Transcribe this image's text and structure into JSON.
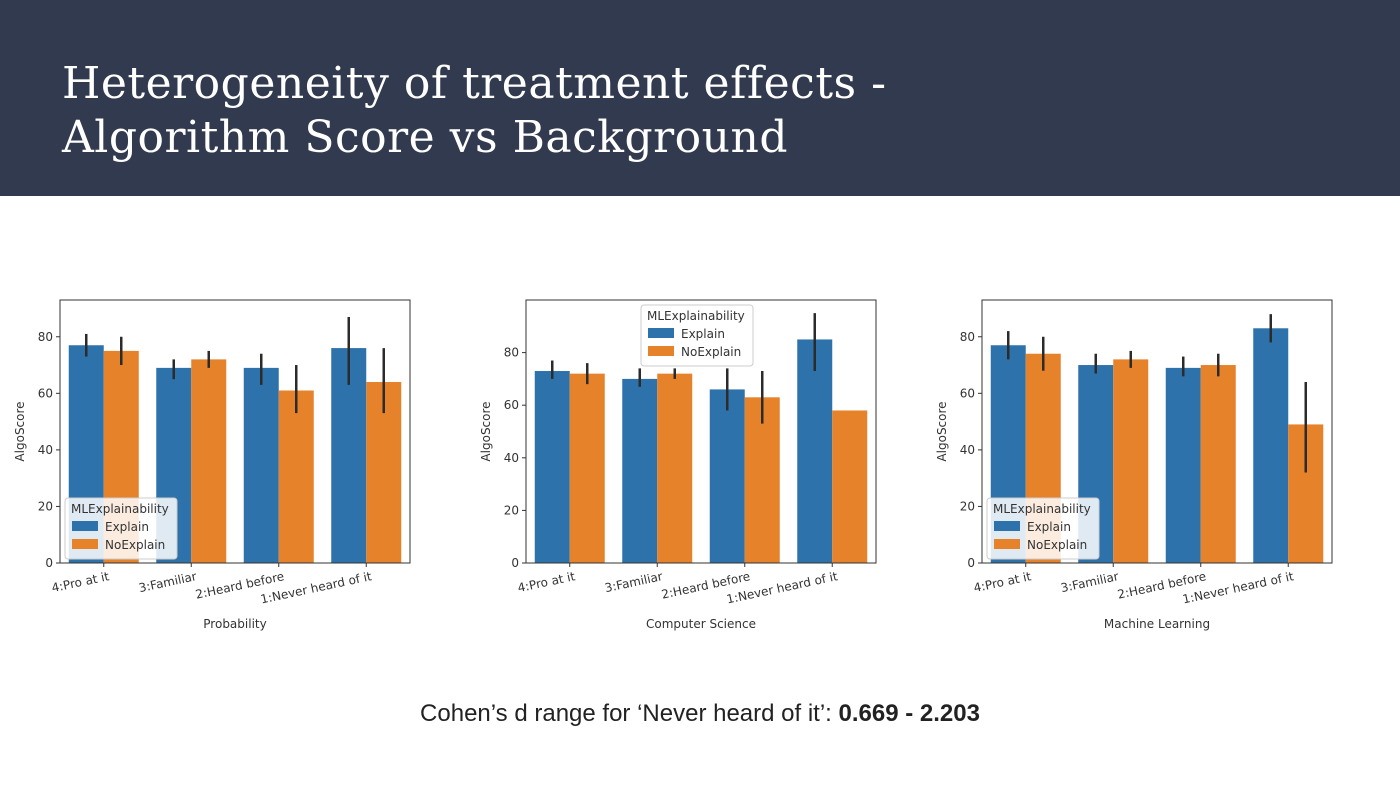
{
  "header": {
    "title_line1": "Heterogeneity of treatment effects -",
    "title_line2": "Algorithm Score vs Background"
  },
  "footer": {
    "text": "Cohen’s d range for ‘Never heard of it’: ",
    "value": "0.669 - 2.203"
  },
  "colors": {
    "header_bg": "#313a4e",
    "explain": "#2e72ab",
    "noexplain": "#e6822a"
  },
  "chart_data": [
    {
      "type": "bar",
      "categories": [
        "4:Pro at it",
        "3:Familiar",
        "2:Heard before",
        "1:Never heard of it"
      ],
      "series": [
        {
          "name": "Explain",
          "values": [
            77,
            69,
            69,
            76
          ],
          "err_low": [
            73,
            65,
            63,
            63
          ],
          "err_high": [
            81,
            72,
            74,
            87
          ]
        },
        {
          "name": "NoExplain",
          "values": [
            75,
            72,
            61,
            64
          ],
          "err_low": [
            70,
            69,
            53,
            53
          ],
          "err_high": [
            80,
            75,
            70,
            76
          ]
        }
      ],
      "xlabel": "Probability",
      "ylabel": "AlgoScore",
      "ylim": [
        0,
        93
      ],
      "yticks": [
        0,
        20,
        40,
        60,
        80
      ],
      "legend_title": "MLExplainability",
      "legend_position": "lower-left"
    },
    {
      "type": "bar",
      "categories": [
        "4:Pro at it",
        "3:Familiar",
        "2:Heard before",
        "1:Never heard of it"
      ],
      "series": [
        {
          "name": "Explain",
          "values": [
            73,
            70,
            66,
            85
          ],
          "err_low": [
            70,
            67,
            58,
            73
          ],
          "err_high": [
            77,
            74,
            74,
            95
          ]
        },
        {
          "name": "NoExplain",
          "values": [
            72,
            72,
            63,
            58
          ],
          "err_low": [
            68,
            70,
            53,
            58
          ],
          "err_high": [
            76,
            74,
            73,
            58
          ]
        }
      ],
      "xlabel": "Computer Science",
      "ylabel": "AlgoScore",
      "ylim": [
        0,
        100
      ],
      "yticks": [
        0,
        20,
        40,
        60,
        80
      ],
      "legend_title": "MLExplainability",
      "legend_position": "upper-center"
    },
    {
      "type": "bar",
      "categories": [
        "4:Pro at it",
        "3:Familiar",
        "2:Heard before",
        "1:Never heard of it"
      ],
      "series": [
        {
          "name": "Explain",
          "values": [
            77,
            70,
            69,
            83
          ],
          "err_low": [
            72,
            67,
            66,
            78
          ],
          "err_high": [
            82,
            74,
            73,
            88
          ]
        },
        {
          "name": "NoExplain",
          "values": [
            74,
            72,
            70,
            49
          ],
          "err_low": [
            68,
            69,
            66,
            32
          ],
          "err_high": [
            80,
            75,
            74,
            64
          ]
        }
      ],
      "xlabel": "Machine Learning",
      "ylabel": "AlgoScore",
      "ylim": [
        0,
        93
      ],
      "yticks": [
        0,
        20,
        40,
        60,
        80
      ],
      "legend_title": "MLExplainability",
      "legend_position": "lower-left"
    }
  ]
}
